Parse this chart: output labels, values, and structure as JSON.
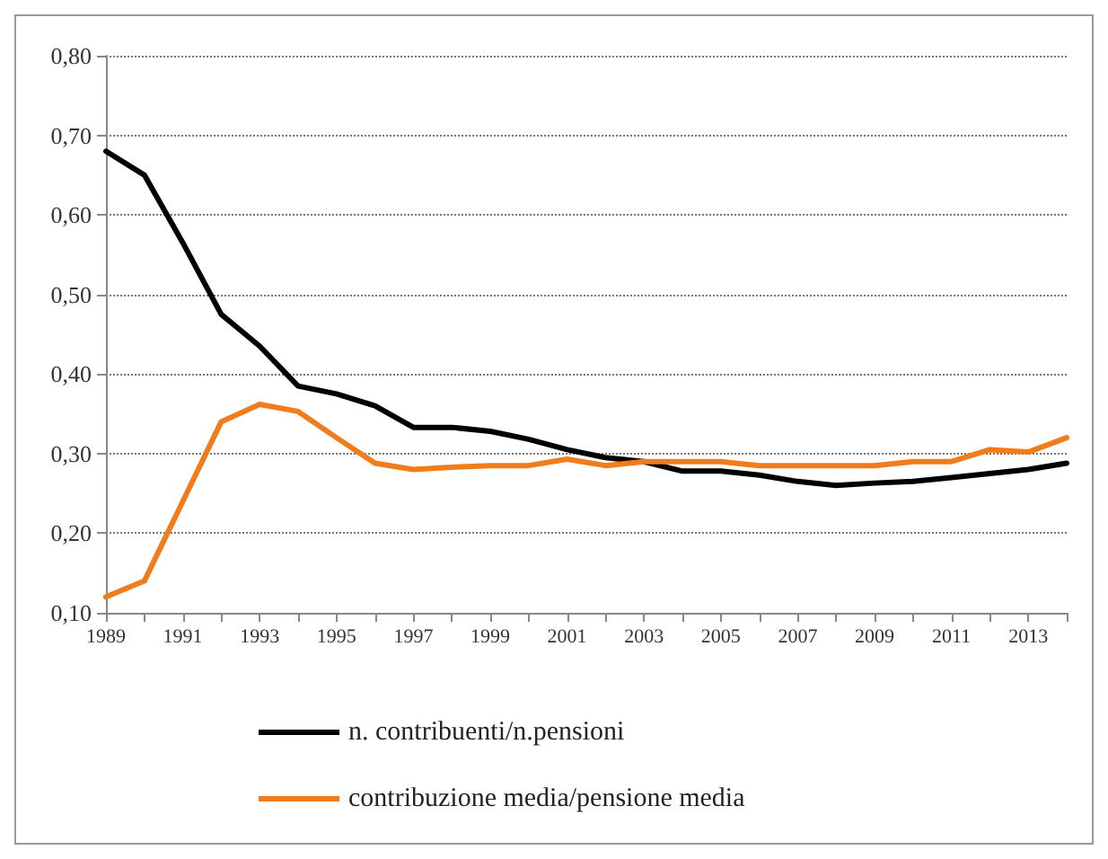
{
  "chart_data": {
    "type": "line",
    "categories": [
      "1989",
      null,
      "1991",
      null,
      "1993",
      null,
      "1995",
      null,
      "1997",
      null,
      "1999",
      null,
      "2001",
      null,
      "2003",
      null,
      "2005",
      null,
      "2007",
      null,
      "2009",
      null,
      "2011",
      null,
      "2013",
      null
    ],
    "series": [
      {
        "name": "n. contribuenti/n.pensioni",
        "color": "#000000",
        "values": [
          0.68,
          0.65,
          0.565,
          0.475,
          0.435,
          0.385,
          0.375,
          0.36,
          0.333,
          0.333,
          0.328,
          0.318,
          0.305,
          0.295,
          0.29,
          0.278,
          0.278,
          0.273,
          0.265,
          0.26,
          0.263,
          0.265,
          0.27,
          0.275,
          0.28,
          0.288
        ]
      },
      {
        "name": "contribuzione media/pensione media",
        "color": "#f07c1c",
        "values": [
          0.12,
          0.14,
          0.24,
          0.34,
          0.362,
          0.353,
          0.32,
          0.288,
          0.28,
          0.283,
          0.285,
          0.285,
          0.293,
          0.285,
          0.29,
          0.29,
          0.29,
          0.285,
          0.285,
          0.285,
          0.285,
          0.29,
          0.29,
          0.305,
          0.302,
          0.32
        ]
      }
    ],
    "ylim": [
      0.1,
      0.8
    ],
    "yticks": [
      {
        "value": 0.1,
        "label": "0,10"
      },
      {
        "value": 0.2,
        "label": "0,20"
      },
      {
        "value": 0.3,
        "label": "0,30"
      },
      {
        "value": 0.4,
        "label": "0,40"
      },
      {
        "value": 0.5,
        "label": "0,50"
      },
      {
        "value": 0.6,
        "label": "0,60"
      },
      {
        "value": 0.7,
        "label": "0,70"
      },
      {
        "value": 0.8,
        "label": "0,80"
      }
    ],
    "grid": "y",
    "legend": "bottom",
    "marker": "none",
    "line_style": "solid"
  }
}
